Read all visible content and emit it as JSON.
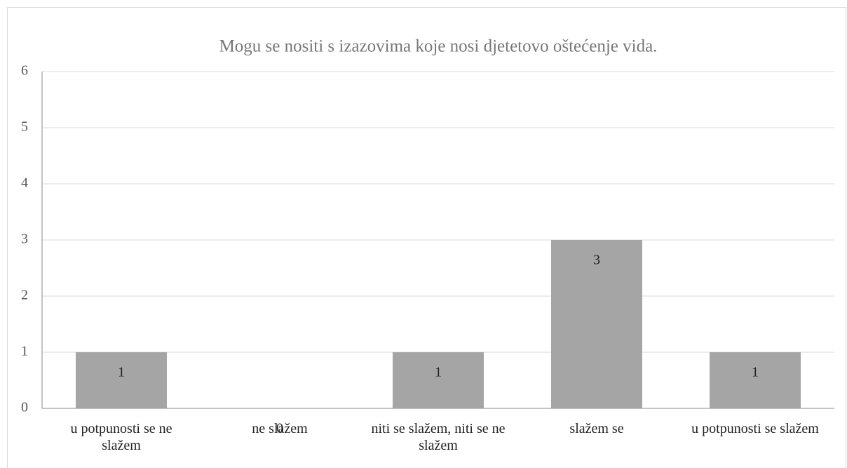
{
  "chart_data": {
    "type": "bar",
    "title": "Mogu se nositi s izazovima koje nosi djetetovo oštećenje vida.",
    "categories": [
      "u potpunosti se ne slažem",
      "ne slažem",
      "niti se slažem, niti se ne slažem",
      "slažem se",
      "u potpunosti se slažem"
    ],
    "values": [
      1,
      0,
      1,
      3,
      1
    ],
    "color": "#a5a5a5",
    "ylim": [
      0,
      6
    ],
    "yticks": [
      0,
      1,
      2,
      3,
      4,
      5,
      6
    ],
    "grid": true
  }
}
